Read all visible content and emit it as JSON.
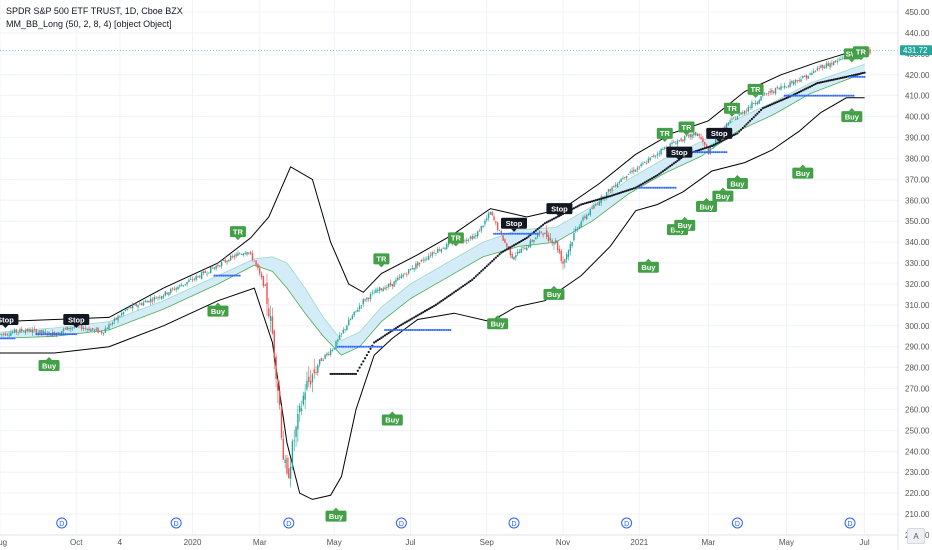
{
  "header": {
    "symbol_line": "SPDR S&P 500 ETF TRUST, 1D, Cboe BZX",
    "indicator_line": "MM_BB_Long (50, 2, 8, 4) [object Object]"
  },
  "price_tag": "431.72",
  "axis_button": "A",
  "colors": {
    "up": "#26a69a",
    "down": "#ef5350",
    "band": "#000000",
    "fill": "#d4ecf7",
    "mid": "#4caf50",
    "buy": "#43a047",
    "stop": "#131722",
    "tr": "#43a047",
    "level": "#2962ff",
    "trail": "#131722",
    "div": "#2962ff"
  },
  "chart_data": {
    "type": "candlestick",
    "y_axis": {
      "min": 200,
      "max": 450,
      "ticks": [
        200,
        210,
        220,
        230,
        240,
        250,
        260,
        270,
        280,
        290,
        300,
        310,
        320,
        330,
        340,
        350,
        360,
        370,
        380,
        390,
        400,
        410,
        420,
        430,
        440,
        450
      ]
    },
    "x_axis": {
      "labels": [
        {
          "text": "Aug",
          "i": 0
        },
        {
          "text": "Oct",
          "i": 42
        },
        {
          "text": "4",
          "i": 66
        },
        {
          "text": "2020",
          "i": 106
        },
        {
          "text": "Mar",
          "i": 143
        },
        {
          "text": "May",
          "i": 184
        },
        {
          "text": "Jul",
          "i": 226
        },
        {
          "text": "Sep",
          "i": 268
        },
        {
          "text": "Nov",
          "i": 310
        },
        {
          "text": "2021",
          "i": 352
        },
        {
          "text": "Mar",
          "i": 390
        },
        {
          "text": "May",
          "i": 433
        },
        {
          "text": "Jul",
          "i": 476
        }
      ]
    },
    "n_bars": 480,
    "price_path": [
      [
        0,
        296
      ],
      [
        14,
        298
      ],
      [
        28,
        296
      ],
      [
        42,
        300
      ],
      [
        56,
        297
      ],
      [
        70,
        308
      ],
      [
        90,
        315
      ],
      [
        110,
        324
      ],
      [
        126,
        332
      ],
      [
        136,
        336
      ],
      [
        140,
        331
      ],
      [
        146,
        318
      ],
      [
        150,
        296
      ],
      [
        154,
        262
      ],
      [
        156,
        238
      ],
      [
        158,
        226
      ],
      [
        162,
        246
      ],
      [
        168,
        270
      ],
      [
        176,
        283
      ],
      [
        184,
        290
      ],
      [
        192,
        302
      ],
      [
        200,
        312
      ],
      [
        208,
        317
      ],
      [
        216,
        320
      ],
      [
        226,
        327
      ],
      [
        238,
        335
      ],
      [
        250,
        340
      ],
      [
        262,
        343
      ],
      [
        270,
        354
      ],
      [
        276,
        343
      ],
      [
        282,
        333
      ],
      [
        290,
        338
      ],
      [
        298,
        345
      ],
      [
        306,
        340
      ],
      [
        310,
        330
      ],
      [
        318,
        348
      ],
      [
        330,
        360
      ],
      [
        344,
        372
      ],
      [
        354,
        377
      ],
      [
        364,
        384
      ],
      [
        372,
        388
      ],
      [
        384,
        392
      ],
      [
        390,
        383
      ],
      [
        400,
        396
      ],
      [
        410,
        403
      ],
      [
        420,
        410
      ],
      [
        430,
        414
      ],
      [
        440,
        418
      ],
      [
        446,
        420
      ],
      [
        452,
        424
      ],
      [
        460,
        426
      ],
      [
        468,
        430
      ],
      [
        476,
        431
      ]
    ],
    "bands": {
      "upper": [
        [
          0,
          302
        ],
        [
          30,
          303
        ],
        [
          60,
          304
        ],
        [
          90,
          318
        ],
        [
          120,
          330
        ],
        [
          138,
          342
        ],
        [
          148,
          352
        ],
        [
          160,
          376
        ],
        [
          172,
          370
        ],
        [
          182,
          340
        ],
        [
          192,
          320
        ],
        [
          200,
          316
        ],
        [
          210,
          325
        ],
        [
          230,
          334
        ],
        [
          250,
          344
        ],
        [
          270,
          356
        ],
        [
          290,
          352
        ],
        [
          310,
          356
        ],
        [
          330,
          368
        ],
        [
          350,
          382
        ],
        [
          370,
          392
        ],
        [
          390,
          398
        ],
        [
          410,
          412
        ],
        [
          430,
          420
        ],
        [
          450,
          426
        ],
        [
          465,
          430
        ],
        [
          476,
          432
        ]
      ],
      "lower": [
        [
          0,
          287
        ],
        [
          30,
          287
        ],
        [
          60,
          290
        ],
        [
          90,
          300
        ],
        [
          120,
          312
        ],
        [
          140,
          318
        ],
        [
          150,
          292
        ],
        [
          158,
          244
        ],
        [
          165,
          220
        ],
        [
          172,
          217
        ],
        [
          182,
          219
        ],
        [
          188,
          228
        ],
        [
          196,
          260
        ],
        [
          206,
          286
        ],
        [
          216,
          294
        ],
        [
          230,
          303
        ],
        [
          250,
          306
        ],
        [
          270,
          302
        ],
        [
          284,
          309
        ],
        [
          300,
          312
        ],
        [
          320,
          324
        ],
        [
          336,
          338
        ],
        [
          350,
          355
        ],
        [
          362,
          358
        ],
        [
          376,
          364
        ],
        [
          392,
          374
        ],
        [
          410,
          378
        ],
        [
          425,
          384
        ],
        [
          440,
          393
        ],
        [
          452,
          402
        ],
        [
          466,
          409
        ],
        [
          476,
          409
        ]
      ],
      "mid": [
        [
          0,
          294
        ],
        [
          30,
          295
        ],
        [
          60,
          298
        ],
        [
          90,
          308
        ],
        [
          120,
          320
        ],
        [
          140,
          329
        ],
        [
          150,
          326
        ],
        [
          158,
          318
        ],
        [
          168,
          306
        ],
        [
          178,
          295
        ],
        [
          188,
          286
        ],
        [
          198,
          290
        ],
        [
          210,
          302
        ],
        [
          226,
          313
        ],
        [
          246,
          323
        ],
        [
          266,
          333
        ],
        [
          286,
          338
        ],
        [
          306,
          340
        ],
        [
          326,
          350
        ],
        [
          346,
          363
        ],
        [
          366,
          373
        ],
        [
          386,
          381
        ],
        [
          406,
          393
        ],
        [
          426,
          401
        ],
        [
          446,
          411
        ],
        [
          476,
          421
        ]
      ],
      "upper_fill": [
        [
          0,
          297
        ],
        [
          30,
          299
        ],
        [
          60,
          302
        ],
        [
          90,
          312
        ],
        [
          120,
          324
        ],
        [
          140,
          332
        ],
        [
          150,
          333
        ],
        [
          158,
          330
        ],
        [
          168,
          318
        ],
        [
          178,
          304
        ],
        [
          188,
          293
        ],
        [
          198,
          297
        ],
        [
          210,
          309
        ],
        [
          226,
          320
        ],
        [
          246,
          330
        ],
        [
          266,
          340
        ],
        [
          286,
          346
        ],
        [
          306,
          347
        ],
        [
          326,
          357
        ],
        [
          346,
          370
        ],
        [
          366,
          380
        ],
        [
          386,
          388
        ],
        [
          406,
          399
        ],
        [
          426,
          407
        ],
        [
          446,
          416
        ],
        [
          476,
          425
        ]
      ]
    },
    "trail_segments": [
      [
        [
          182,
          277
        ],
        [
          196,
          277
        ],
        [
          206,
          292
        ],
        [
          220,
          300
        ],
        [
          240,
          310
        ],
        [
          260,
          322
        ],
        [
          276,
          335
        ],
        [
          290,
          342
        ],
        [
          300,
          349
        ],
        [
          320,
          358
        ],
        [
          336,
          362
        ],
        [
          350,
          366
        ],
        [
          362,
          372
        ],
        [
          378,
          382
        ],
        [
          392,
          386
        ],
        [
          406,
          392
        ],
        [
          420,
          404
        ],
        [
          436,
          410
        ],
        [
          450,
          416
        ],
        [
          466,
          419
        ],
        [
          476,
          421
        ]
      ]
    ],
    "levels": [
      {
        "from": 0,
        "to": 8,
        "y": 294
      },
      {
        "from": 20,
        "to": 42,
        "y": 296
      },
      {
        "from": 118,
        "to": 132,
        "y": 324
      },
      {
        "from": 186,
        "to": 210,
        "y": 290
      },
      {
        "from": 212,
        "to": 248,
        "y": 298
      },
      {
        "from": 272,
        "to": 296,
        "y": 344
      },
      {
        "from": 352,
        "to": 372,
        "y": 366
      },
      {
        "from": 376,
        "to": 400,
        "y": 383
      },
      {
        "from": 432,
        "to": 470,
        "y": 410
      },
      {
        "from": 468,
        "to": 476,
        "y": 419
      }
    ],
    "markers": [
      {
        "label": "Stop",
        "kind": "stop",
        "i": 3,
        "y": 303,
        "dir": "up"
      },
      {
        "label": "Buy",
        "kind": "buy",
        "i": 27,
        "y": 281,
        "dir": "down"
      },
      {
        "label": "Stop",
        "kind": "stop",
        "i": 42,
        "y": 303,
        "dir": "up"
      },
      {
        "label": "Buy",
        "kind": "buy",
        "i": 120,
        "y": 307,
        "dir": "down"
      },
      {
        "label": "TR",
        "kind": "tr",
        "i": 131,
        "y": 345,
        "dir": "up"
      },
      {
        "label": "Buy",
        "kind": "buy",
        "i": 185,
        "y": 209,
        "dir": "down"
      },
      {
        "label": "TR",
        "kind": "tr",
        "i": 210,
        "y": 332,
        "dir": "up"
      },
      {
        "label": "Buy",
        "kind": "buy",
        "i": 216,
        "y": 255,
        "dir": "down"
      },
      {
        "label": "TR",
        "kind": "tr",
        "i": 251,
        "y": 342,
        "dir": "up"
      },
      {
        "label": "Buy",
        "kind": "buy",
        "i": 274,
        "y": 301,
        "dir": "down"
      },
      {
        "label": "Stop",
        "kind": "stop",
        "i": 283,
        "y": 349,
        "dir": "up"
      },
      {
        "label": "Buy",
        "kind": "buy",
        "i": 305,
        "y": 315,
        "dir": "down"
      },
      {
        "label": "Stop",
        "kind": "stop",
        "i": 308,
        "y": 356,
        "dir": "up"
      },
      {
        "label": "Buy",
        "kind": "buy",
        "i": 357,
        "y": 328,
        "dir": "down"
      },
      {
        "label": "TR",
        "kind": "tr",
        "i": 366,
        "y": 392,
        "dir": "up"
      },
      {
        "label": "Buy",
        "kind": "buy",
        "i": 373,
        "y": 346,
        "dir": "down"
      },
      {
        "label": "Stop",
        "kind": "stop",
        "i": 374,
        "y": 383,
        "dir": "up"
      },
      {
        "label": "Buy",
        "kind": "buy",
        "i": 377,
        "y": 348,
        "dir": "down"
      },
      {
        "label": "TR",
        "kind": "tr",
        "i": 378,
        "y": 395,
        "dir": "up"
      },
      {
        "label": "Buy",
        "kind": "buy",
        "i": 389,
        "y": 357,
        "dir": "down"
      },
      {
        "label": "Buy",
        "kind": "buy",
        "i": 398,
        "y": 362,
        "dir": "down"
      },
      {
        "label": "TR",
        "kind": "tr",
        "i": 403,
        "y": 404,
        "dir": "up"
      },
      {
        "label": "Stop",
        "kind": "stop",
        "i": 396,
        "y": 392,
        "dir": "up"
      },
      {
        "label": "Buy",
        "kind": "buy",
        "i": 406,
        "y": 368,
        "dir": "down"
      },
      {
        "label": "TR",
        "kind": "tr",
        "i": 416,
        "y": 413,
        "dir": "up"
      },
      {
        "label": "Buy",
        "kind": "buy",
        "i": 442,
        "y": 373,
        "dir": "down"
      },
      {
        "label": "SW",
        "kind": "tr",
        "i": 469,
        "y": 430,
        "dir": "up"
      },
      {
        "label": "TR",
        "kind": "tr",
        "i": 474,
        "y": 431,
        "dir": "up"
      },
      {
        "label": "Buy",
        "kind": "buy",
        "i": 469,
        "y": 400,
        "dir": "down"
      }
    ],
    "dividends": [
      34,
      97,
      159,
      221,
      283,
      345,
      406,
      468
    ]
  }
}
